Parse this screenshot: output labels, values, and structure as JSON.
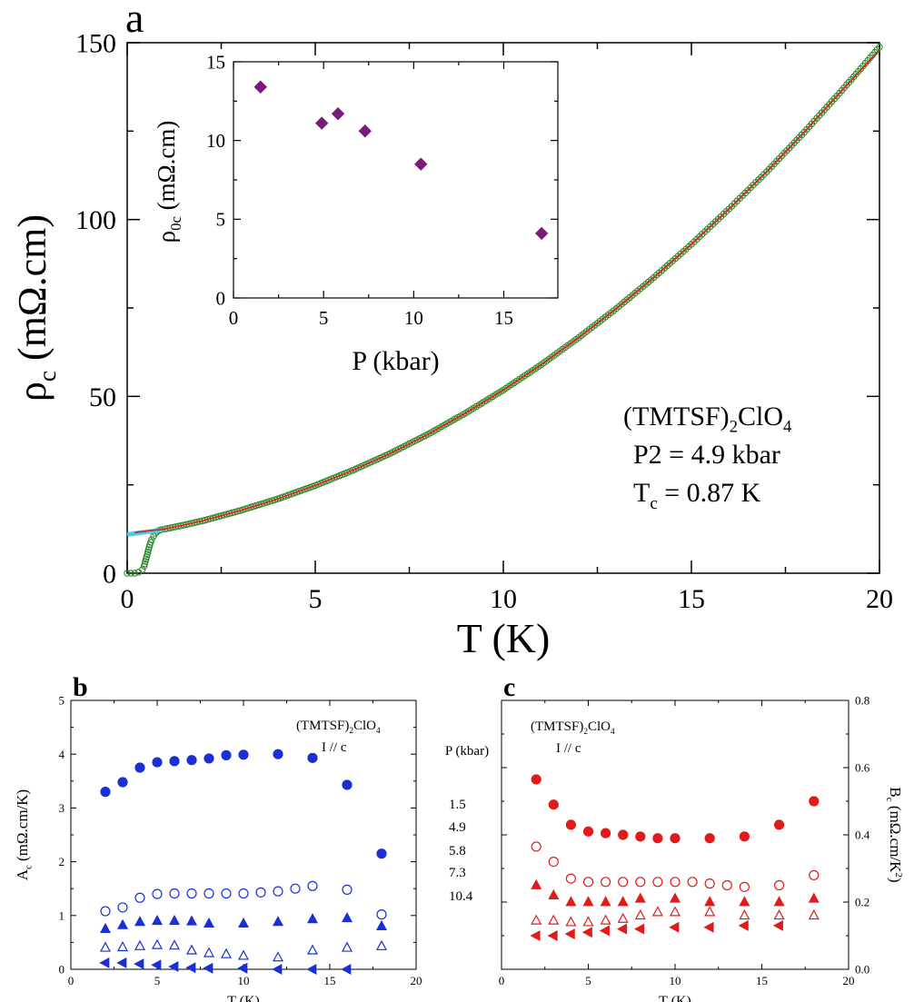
{
  "chart_data": [
    {
      "id": "a",
      "type": "line",
      "panel_label": "a",
      "xlabel": "T (K)",
      "ylabel_main": "ρ",
      "ylabel_sub": "c",
      "ylabel_units": " (mΩ.cm)",
      "xlim": [
        0,
        20
      ],
      "ylim": [
        0,
        150
      ],
      "xticks": [
        0,
        5,
        10,
        15,
        20
      ],
      "yticks": [
        0,
        50,
        100,
        150
      ],
      "annotation": {
        "compound_pre": "(TMTSF)",
        "compound_sub": "2",
        "compound_post": "ClO",
        "compound_sub2": "4",
        "pressure": "P2 = 4.9 kbar",
        "tc_pre": "T",
        "tc_sub": "c",
        "tc_post": " =  0.87 K"
      },
      "series": [
        {
          "style": "measured (open circles)",
          "color": "#2e8b2e",
          "x": [
            0,
            0.1,
            0.2,
            0.3,
            0.4,
            0.45,
            0.5,
            0.55,
            0.6,
            0.65,
            0.7,
            0.75,
            0.8,
            0.85,
            0.9,
            1.0,
            1.5,
            2,
            3,
            4,
            5,
            6,
            7,
            8,
            9,
            10,
            11,
            12,
            13,
            14,
            15,
            16,
            17,
            18,
            19,
            20
          ],
          "y": [
            0,
            0,
            0,
            0.3,
            1,
            2,
            4,
            6,
            8,
            9.5,
            10.5,
            11.3,
            11.8,
            12.1,
            12.3,
            12.5,
            13.6,
            14.8,
            17.7,
            21.0,
            24.8,
            29.1,
            33.9,
            39.3,
            45.3,
            51.8,
            58.9,
            66.6,
            74.8,
            83.6,
            93.0,
            103.0,
            113.5,
            124.7,
            136.5,
            148.8
          ]
        },
        {
          "style": "fit (red line)",
          "color": "#d42a1e",
          "x": [
            0.2,
            0.5,
            1,
            1.5,
            2,
            3,
            4,
            5,
            6,
            7,
            8,
            9,
            10,
            11,
            12,
            13,
            14,
            15,
            16,
            17,
            18,
            19,
            20
          ],
          "y": [
            11.5,
            11.9,
            12.5,
            13.6,
            14.8,
            17.7,
            21.0,
            24.8,
            29.1,
            33.9,
            39.3,
            45.3,
            51.8,
            58.9,
            66.6,
            74.8,
            83.6,
            93.0,
            103.0,
            113.5,
            124.7,
            136.5,
            148.0
          ]
        },
        {
          "style": "extrapolation (cyan)",
          "color": "#40d0e8",
          "x": [
            0.05,
            0.3,
            0.6,
            0.9
          ],
          "y": [
            11.0,
            11.4,
            11.8,
            12.2
          ]
        }
      ],
      "inset": {
        "type": "scatter",
        "xlabel": "P (kbar)",
        "ylabel_main": "ρ",
        "ylabel_sub": "0c",
        "ylabel_units": " (mΩ.cm)",
        "xlim": [
          0,
          18
        ],
        "ylim": [
          0,
          15
        ],
        "xticks": [
          0,
          5,
          10,
          15
        ],
        "yticks": [
          0,
          5,
          10,
          15
        ],
        "color": "#7a1a7a",
        "x": [
          1.5,
          4.9,
          5.8,
          7.3,
          10.4,
          17.1
        ],
        "y": [
          13.4,
          11.1,
          11.7,
          10.6,
          8.5,
          4.1
        ]
      }
    },
    {
      "id": "b",
      "type": "scatter",
      "panel_label": "b",
      "xlabel": "T (K)",
      "ylabel_main": "A",
      "ylabel_sub": "c",
      "ylabel_units": " (mΩ.cm/K)",
      "xlim": [
        0,
        20
      ],
      "ylim": [
        0,
        5
      ],
      "xticks": [
        0,
        5,
        10,
        15,
        20
      ],
      "yticks": [
        0,
        1,
        2,
        3,
        4,
        5
      ],
      "color": "#1a2fd6",
      "annotation": {
        "compound_pre": "(TMTSF)",
        "compound_sub": "2",
        "compound_post": "ClO",
        "compound_sub2": "4",
        "current": "I // c"
      },
      "legend_title": "P (kbar)",
      "legend_values": [
        "1.5",
        "4.9",
        "5.8",
        "7.3",
        "10.4"
      ],
      "series": [
        {
          "name": "1.5",
          "marker": "circle-filled",
          "x": [
            2,
            3,
            4,
            5,
            6,
            7,
            8,
            9,
            10,
            12,
            14,
            16,
            18
          ],
          "y": [
            3.3,
            3.48,
            3.75,
            3.85,
            3.87,
            3.89,
            3.92,
            3.98,
            3.99,
            4.0,
            3.93,
            3.43,
            2.15
          ]
        },
        {
          "name": "4.9",
          "marker": "circle-open",
          "x": [
            2,
            3,
            4,
            5,
            6,
            7,
            8,
            9,
            10,
            11,
            12,
            13,
            14,
            16,
            18
          ],
          "y": [
            1.08,
            1.15,
            1.33,
            1.4,
            1.41,
            1.41,
            1.41,
            1.41,
            1.41,
            1.43,
            1.45,
            1.5,
            1.55,
            1.48,
            1.02
          ]
        },
        {
          "name": "5.8",
          "marker": "triangle-up-filled",
          "x": [
            2,
            3,
            4,
            5,
            6,
            7,
            8,
            10,
            12,
            14,
            16,
            18
          ],
          "y": [
            0.75,
            0.82,
            0.88,
            0.9,
            0.9,
            0.89,
            0.85,
            0.85,
            0.88,
            0.93,
            0.95,
            0.8
          ]
        },
        {
          "name": "7.3",
          "marker": "triangle-up-open",
          "x": [
            2,
            3,
            4,
            5,
            6,
            7,
            8,
            9,
            10,
            12,
            14,
            16,
            18
          ],
          "y": [
            0.4,
            0.41,
            0.43,
            0.45,
            0.44,
            0.35,
            0.3,
            0.28,
            0.25,
            0.22,
            0.35,
            0.4,
            0.43
          ]
        },
        {
          "name": "10.4",
          "marker": "triangle-left-filled",
          "x": [
            2,
            3,
            4,
            5,
            6,
            7,
            8,
            10,
            12,
            14,
            16
          ],
          "y": [
            0.12,
            0.12,
            0.1,
            0.08,
            0.05,
            0.03,
            0.02,
            0.02,
            0.0,
            0.0,
            0.0
          ]
        }
      ]
    },
    {
      "id": "c",
      "type": "scatter",
      "panel_label": "c",
      "xlabel": "T (K)",
      "ylabel_main": "B",
      "ylabel_sub": "c",
      "ylabel_units": " (mΩ.cm/K",
      "ylabel_sup": "2",
      "ylabel_close": ")",
      "xlim": [
        0,
        20
      ],
      "ylim": [
        0.0,
        0.8
      ],
      "xticks": [
        0,
        5,
        10,
        15,
        20
      ],
      "yticks": [
        0.0,
        0.2,
        0.4,
        0.6,
        0.8
      ],
      "ytick_labels": [
        "0.0",
        "0.2",
        "0.4",
        "0.6",
        "0.8"
      ],
      "y_axis_side": "right",
      "color": "#e01b1b",
      "annotation": {
        "compound_pre": "(TMTSF)",
        "compound_sub": "2",
        "compound_post": "ClO",
        "compound_sub2": "4",
        "current": "I // c"
      },
      "series": [
        {
          "marker": "circle-filled",
          "x": [
            2,
            3,
            4,
            5,
            6,
            7,
            8,
            9,
            10,
            12,
            14,
            16,
            18
          ],
          "y": [
            0.565,
            0.49,
            0.43,
            0.41,
            0.405,
            0.4,
            0.395,
            0.39,
            0.39,
            0.39,
            0.395,
            0.43,
            0.5
          ]
        },
        {
          "marker": "circle-open",
          "x": [
            2,
            3,
            4,
            5,
            6,
            7,
            8,
            9,
            10,
            11,
            12,
            13,
            14,
            16,
            18
          ],
          "y": [
            0.365,
            0.32,
            0.27,
            0.26,
            0.26,
            0.26,
            0.26,
            0.26,
            0.26,
            0.26,
            0.255,
            0.25,
            0.245,
            0.25,
            0.28
          ]
        },
        {
          "marker": "triangle-up-filled",
          "x": [
            2,
            3,
            4,
            5,
            6,
            7,
            8,
            10,
            12,
            14,
            16,
            18
          ],
          "y": [
            0.25,
            0.22,
            0.2,
            0.2,
            0.2,
            0.2,
            0.21,
            0.21,
            0.2,
            0.2,
            0.2,
            0.21
          ]
        },
        {
          "marker": "triangle-up-open",
          "x": [
            2,
            3,
            4,
            5,
            6,
            7,
            8,
            9,
            10,
            12,
            14,
            16,
            18
          ],
          "y": [
            0.145,
            0.145,
            0.14,
            0.14,
            0.145,
            0.15,
            0.16,
            0.17,
            0.17,
            0.17,
            0.16,
            0.16,
            0.16
          ]
        },
        {
          "marker": "triangle-left-filled",
          "x": [
            2,
            3,
            4,
            5,
            6,
            7,
            8,
            10,
            12,
            14,
            16
          ],
          "y": [
            0.1,
            0.1,
            0.105,
            0.11,
            0.115,
            0.12,
            0.12,
            0.125,
            0.125,
            0.13,
            0.13
          ]
        }
      ]
    }
  ]
}
